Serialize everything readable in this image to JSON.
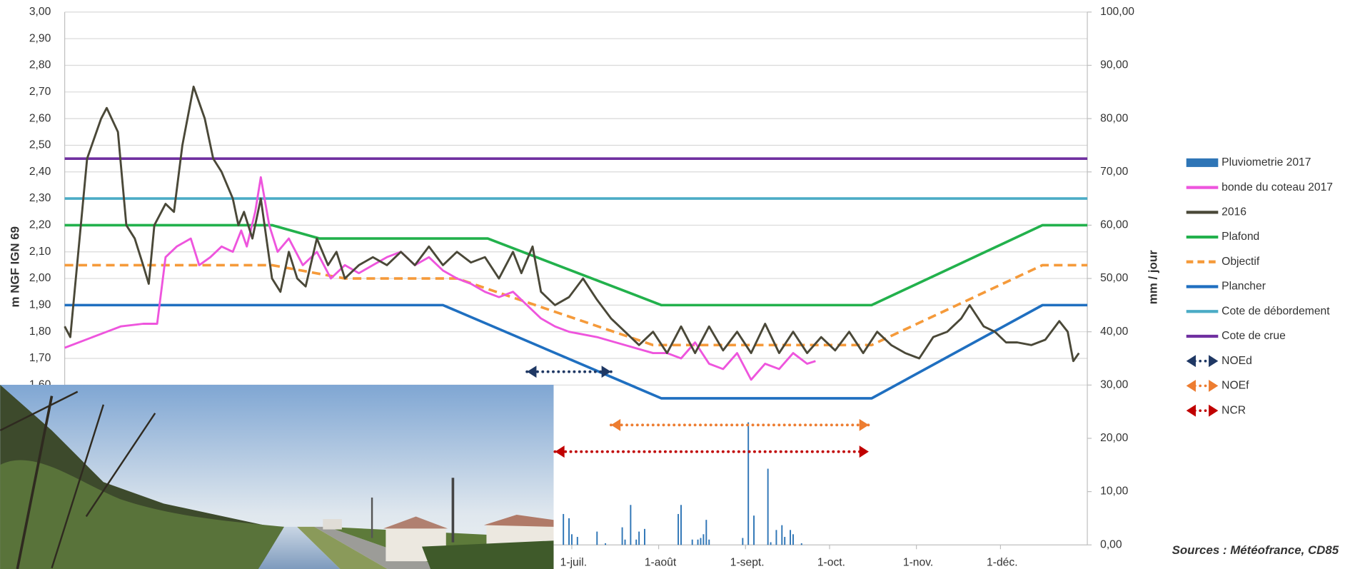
{
  "chart_data": {
    "type": "line",
    "y_label": "m NGF IGN 69",
    "y2_label": "mm / jour",
    "source": "Sources : Météofrance, CD85",
    "xlim": [
      0,
      365
    ],
    "xticks": [
      {
        "value": 181,
        "label": "1-juil."
      },
      {
        "value": 212,
        "label": "1-août"
      },
      {
        "value": 243,
        "label": "1-sept."
      },
      {
        "value": 273,
        "label": "1-oct."
      },
      {
        "value": 304,
        "label": "1-nov."
      },
      {
        "value": 334,
        "label": "1-déc."
      }
    ],
    "ylim": [
      1.0,
      3.0
    ],
    "yticks": [
      {
        "value": 1.6,
        "label": "1,60"
      },
      {
        "value": 1.7,
        "label": "1,70"
      },
      {
        "value": 1.8,
        "label": "1,80"
      },
      {
        "value": 1.9,
        "label": "1,90"
      },
      {
        "value": 2.0,
        "label": "2,00"
      },
      {
        "value": 2.1,
        "label": "2,10"
      },
      {
        "value": 2.2,
        "label": "2,20"
      },
      {
        "value": 2.3,
        "label": "2,30"
      },
      {
        "value": 2.4,
        "label": "2,40"
      },
      {
        "value": 2.5,
        "label": "2,50"
      },
      {
        "value": 2.6,
        "label": "2,60"
      },
      {
        "value": 2.7,
        "label": "2,70"
      },
      {
        "value": 2.8,
        "label": "2,80"
      },
      {
        "value": 2.9,
        "label": "2,90"
      },
      {
        "value": 3.0,
        "label": "3,00"
      }
    ],
    "y2lim": [
      0,
      100
    ],
    "y2ticks": [
      {
        "value": 0,
        "label": "0,00"
      },
      {
        "value": 10,
        "label": "10,00"
      },
      {
        "value": 20,
        "label": "20,00"
      },
      {
        "value": 30,
        "label": "30,00"
      },
      {
        "value": 40,
        "label": "40,00"
      },
      {
        "value": 50,
        "label": "50,00"
      },
      {
        "value": 60,
        "label": "60,00"
      },
      {
        "value": 70,
        "label": "70,00"
      },
      {
        "value": 80,
        "label": "80,00"
      },
      {
        "value": 90,
        "label": "90,00"
      },
      {
        "value": 100,
        "label": "100,00"
      }
    ],
    "grid": true,
    "series": [
      {
        "name": "Pluviometrie 2017",
        "type": "bar",
        "axis": "y2",
        "color": "#2e75b6",
        "x": [
          178,
          180,
          181,
          183,
          190,
          193,
          199,
          200,
          202,
          204,
          205,
          207,
          219,
          220,
          224,
          226,
          227,
          228,
          229,
          230,
          242,
          244,
          246,
          251,
          252,
          254,
          256,
          257,
          259,
          260,
          263
        ],
        "values": [
          5.8,
          5,
          2,
          1.5,
          2.5,
          0.3,
          3.3,
          1,
          7.5,
          1,
          2.5,
          3,
          5.8,
          7.5,
          1,
          1,
          1.3,
          2,
          4.7,
          1,
          1.3,
          23,
          5.5,
          14.3,
          0.5,
          2.8,
          3.7,
          1.5,
          2.8,
          2,
          0.3
        ]
      },
      {
        "name": "bonde du coteau 2017",
        "type": "line",
        "color": "#ee55dd",
        "style": "solid",
        "x": [
          0,
          10,
          15,
          20,
          28,
          33,
          36,
          40,
          45,
          48,
          52,
          56,
          60,
          63,
          65,
          68,
          70,
          73,
          76,
          80,
          85,
          90,
          95,
          100,
          105,
          110,
          115,
          120,
          125,
          130,
          135,
          140,
          145,
          150,
          155,
          160,
          165,
          170,
          175,
          180,
          190,
          200,
          210,
          215,
          220,
          225,
          230,
          235,
          240,
          245,
          250,
          255,
          260,
          265,
          268
        ],
        "values": [
          1.74,
          1.78,
          1.8,
          1.82,
          1.83,
          1.83,
          2.08,
          2.12,
          2.15,
          2.05,
          2.08,
          2.12,
          2.1,
          2.18,
          2.12,
          2.25,
          2.38,
          2.2,
          2.1,
          2.15,
          2.05,
          2.1,
          2.0,
          2.05,
          2.02,
          2.05,
          2.08,
          2.1,
          2.05,
          2.08,
          2.03,
          2.0,
          1.98,
          1.95,
          1.93,
          1.95,
          1.9,
          1.85,
          1.82,
          1.8,
          1.78,
          1.75,
          1.72,
          1.72,
          1.7,
          1.76,
          1.68,
          1.66,
          1.72,
          1.62,
          1.68,
          1.66,
          1.72,
          1.68,
          1.69
        ]
      },
      {
        "name": "2016",
        "type": "line",
        "color": "#4a4838",
        "style": "solid",
        "x": [
          0,
          2,
          8,
          13,
          15,
          19,
          22,
          25,
          28,
          30,
          32,
          36,
          39,
          42,
          46,
          50,
          53,
          56,
          60,
          62,
          64,
          67,
          70,
          74,
          77,
          80,
          83,
          86,
          90,
          94,
          97,
          100,
          105,
          110,
          115,
          120,
          125,
          130,
          135,
          140,
          145,
          150,
          155,
          160,
          163,
          167,
          170,
          175,
          180,
          185,
          190,
          195,
          200,
          205,
          210,
          215,
          220,
          225,
          230,
          235,
          240,
          245,
          250,
          255,
          260,
          265,
          270,
          275,
          280,
          285,
          290,
          295,
          300,
          305,
          310,
          315,
          320,
          323,
          328,
          332,
          336,
          340,
          345,
          350,
          355,
          358,
          360,
          362
        ],
        "values": [
          1.82,
          1.78,
          2.45,
          2.6,
          2.64,
          2.55,
          2.2,
          2.15,
          2.05,
          1.98,
          2.2,
          2.28,
          2.25,
          2.5,
          2.72,
          2.6,
          2.45,
          2.4,
          2.3,
          2.2,
          2.25,
          2.15,
          2.3,
          2.0,
          1.95,
          2.1,
          2.0,
          1.97,
          2.15,
          2.05,
          2.1,
          2.0,
          2.05,
          2.08,
          2.05,
          2.1,
          2.05,
          2.12,
          2.05,
          2.1,
          2.06,
          2.08,
          2.0,
          2.1,
          2.02,
          2.12,
          1.95,
          1.9,
          1.93,
          2.0,
          1.92,
          1.85,
          1.8,
          1.75,
          1.8,
          1.72,
          1.82,
          1.72,
          1.82,
          1.73,
          1.8,
          1.72,
          1.83,
          1.72,
          1.8,
          1.72,
          1.78,
          1.73,
          1.8,
          1.72,
          1.8,
          1.75,
          1.72,
          1.7,
          1.78,
          1.8,
          1.85,
          1.9,
          1.82,
          1.8,
          1.76,
          1.76,
          1.75,
          1.77,
          1.84,
          1.8,
          1.69,
          1.72
        ]
      },
      {
        "name": "Plafond",
        "type": "line",
        "color": "#22b14c",
        "style": "solid",
        "x": [
          0,
          74,
          91,
          151,
          213,
          288,
          349,
          365
        ],
        "values": [
          2.2,
          2.2,
          2.15,
          2.15,
          1.9,
          1.9,
          2.2,
          2.2
        ]
      },
      {
        "name": "Objectif",
        "type": "line",
        "color": "#f59a3a",
        "style": "dashed",
        "x": [
          0,
          74,
          100,
          140,
          210,
          288,
          349,
          365
        ],
        "values": [
          2.05,
          2.05,
          2.0,
          2.0,
          1.75,
          1.75,
          2.05,
          2.05
        ]
      },
      {
        "name": "Plancher",
        "type": "line",
        "color": "#1f6fc0",
        "style": "solid",
        "x": [
          0,
          135,
          213,
          288,
          349,
          365
        ],
        "values": [
          1.9,
          1.9,
          1.55,
          1.55,
          1.9,
          1.9
        ]
      },
      {
        "name": "Cote de débordement",
        "type": "line",
        "color": "#4bacc6",
        "style": "solid",
        "x": [
          0,
          365
        ],
        "values": [
          2.3,
          2.3
        ]
      },
      {
        "name": "Cote de crue",
        "type": "line",
        "color": "#7030a0",
        "style": "solid",
        "x": [
          0,
          365
        ],
        "values": [
          2.45,
          2.45
        ]
      },
      {
        "name": "NOEd",
        "type": "line",
        "color": "#1f3864",
        "style": "arrow",
        "x": [
          165,
          195
        ],
        "values": [
          1.65,
          1.65
        ]
      },
      {
        "name": "NOEf",
        "type": "line",
        "color": "#ed7d31",
        "style": "arrow",
        "x": [
          195,
          287
        ],
        "values": [
          1.45,
          1.45
        ]
      },
      {
        "name": "NCR",
        "type": "line",
        "color": "#c00000",
        "style": "arrow",
        "x": [
          175,
          287
        ],
        "values": [
          1.35,
          1.35
        ]
      }
    ]
  }
}
